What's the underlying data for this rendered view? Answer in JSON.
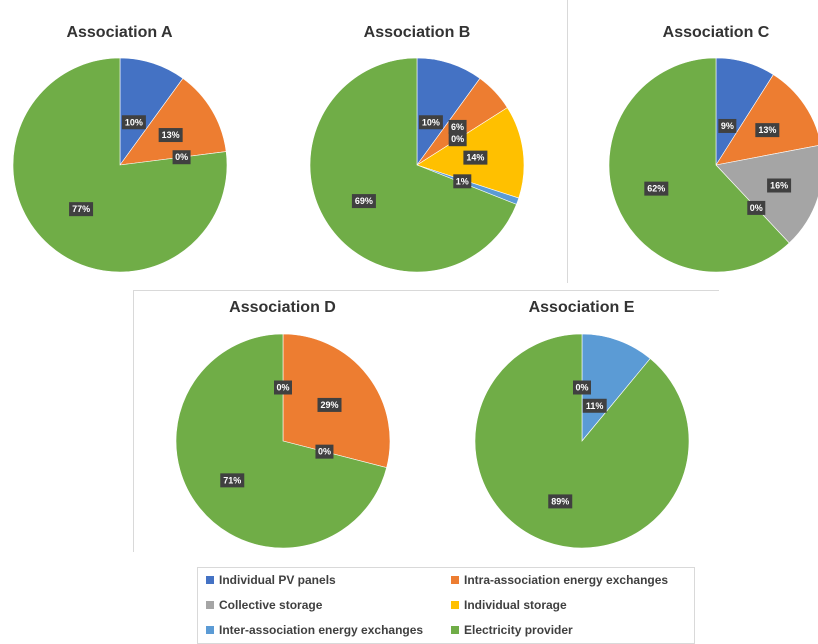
{
  "chart_data": {
    "type": "pie",
    "categories": [
      "Individual PV panels",
      "Intra-association energy exchanges",
      "Collective storage",
      "Individual storage",
      "Inter-association energy exchanges",
      "Electricity provider"
    ],
    "colors": {
      "Individual PV panels": "#4472c4",
      "Intra-association energy exchanges": "#ed7d31",
      "Collective storage": "#a5a5a5",
      "Individual storage": "#ffc000",
      "Inter-association energy exchanges": "#5b9bd5",
      "Electricity provider": "#70ad47"
    },
    "legend": {
      "position": "bottom",
      "items": [
        {
          "label": "Individual PV panels",
          "color": "#4472c4"
        },
        {
          "label": "Intra-association energy exchanges",
          "color": "#ed7d31"
        },
        {
          "label": "Collective storage",
          "color": "#a5a5a5"
        },
        {
          "label": "Individual storage",
          "color": "#ffc000"
        },
        {
          "label": "Inter-association energy exchanges",
          "color": "#5b9bd5"
        },
        {
          "label": "Electricity provider",
          "color": "#70ad47"
        }
      ]
    },
    "charts": [
      {
        "title": "Association A",
        "slices": [
          {
            "category": "Individual PV panels",
            "value": 10,
            "label": "10%"
          },
          {
            "category": "Intra-association energy exchanges",
            "value": 13,
            "label": "13%"
          },
          {
            "category": "Collective storage",
            "value": 0,
            "label": "0%"
          },
          {
            "category": "Electricity provider",
            "value": 77,
            "label": "77%"
          }
        ]
      },
      {
        "title": "Association B",
        "slices": [
          {
            "category": "Individual PV panels",
            "value": 10,
            "label": "10%"
          },
          {
            "category": "Intra-association energy exchanges",
            "value": 6,
            "label": "6%"
          },
          {
            "category": "Collective storage",
            "value": 0,
            "label": "0%"
          },
          {
            "category": "Individual storage",
            "value": 14,
            "label": "14%"
          },
          {
            "category": "Inter-association energy exchanges",
            "value": 1,
            "label": "1%"
          },
          {
            "category": "Electricity provider",
            "value": 69,
            "label": "69%"
          }
        ]
      },
      {
        "title": "Association C",
        "slices": [
          {
            "category": "Individual PV panels",
            "value": 9,
            "label": "9%"
          },
          {
            "category": "Intra-association energy exchanges",
            "value": 13,
            "label": "13%"
          },
          {
            "category": "Collective storage",
            "value": 16,
            "label": "16%"
          },
          {
            "category": "Individual storage",
            "value": 0,
            "label": "0%"
          },
          {
            "category": "Electricity provider",
            "value": 62,
            "label": "62%"
          }
        ]
      },
      {
        "title": "Association D",
        "slices": [
          {
            "category": "Individual PV panels",
            "value": 0,
            "label": "0%"
          },
          {
            "category": "Intra-association energy exchanges",
            "value": 29,
            "label": "29%"
          },
          {
            "category": "Inter-association energy exchanges",
            "value": 0,
            "label": "0%"
          },
          {
            "category": "Electricity provider",
            "value": 71,
            "label": "71%"
          }
        ]
      },
      {
        "title": "Association E",
        "slices": [
          {
            "category": "Individual PV panels",
            "value": 0,
            "label": "0%"
          },
          {
            "category": "Inter-association energy exchanges",
            "value": 11,
            "label": "11%"
          },
          {
            "category": "Electricity provider",
            "value": 89,
            "label": "89%"
          }
        ]
      }
    ]
  }
}
